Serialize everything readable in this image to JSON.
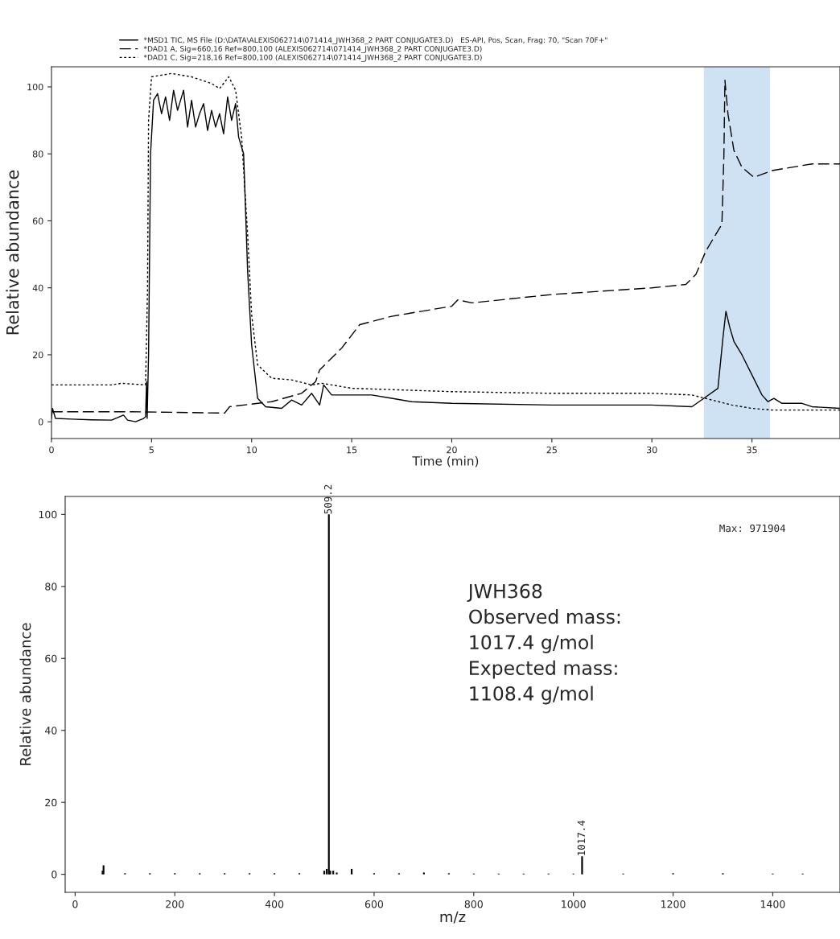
{
  "chart_data": [
    {
      "type": "line",
      "xlabel": "Time (min)",
      "ylabel": "Relative abundance",
      "xlim": [
        0,
        39.4
      ],
      "ylim": [
        -5,
        106
      ],
      "xticks": [
        0,
        5,
        10,
        15,
        20,
        25,
        30,
        35
      ],
      "yticks": [
        0,
        20,
        40,
        60,
        80,
        100
      ],
      "grid": false,
      "legend": "top left",
      "marker": "none",
      "series": [
        {
          "name": "*MSD1 TIC, MS File (D:\\DATA\\ALEXIS062714\\071414_JWH368_2 PART CONJUGATE3.D)   ES-API, Pos, Scan, Frag: 70, \"Scan 70F+\"",
          "color": "#000000",
          "line_style": "solid",
          "x": [
            0,
            0.05,
            0.2,
            1,
            2,
            3,
            3.6,
            3.8,
            4.2,
            4.6,
            4.7,
            4.75,
            4.78,
            4.85,
            4.95,
            5.1,
            5.3,
            5.5,
            5.7,
            5.9,
            6.1,
            6.3,
            6.6,
            6.8,
            7.0,
            7.2,
            7.4,
            7.6,
            7.8,
            8.0,
            8.2,
            8.4,
            8.6,
            8.8,
            9.0,
            9.2,
            9.35,
            9.6,
            9.8,
            10.0,
            10.3,
            10.7,
            11.5,
            12.0,
            12.5,
            13.0,
            13.4,
            13.6,
            14.0,
            15,
            16,
            17,
            18,
            20,
            25,
            30,
            32,
            32.6,
            33.3,
            33.55,
            33.7,
            33.9,
            34.1,
            34.5,
            35,
            35.5,
            35.8,
            36.1,
            36.5,
            37.5,
            38,
            39.4
          ],
          "values": [
            1,
            4,
            1,
            0.8,
            0.6,
            0.5,
            2,
            0.5,
            0,
            1,
            1.5,
            12,
            1,
            20,
            80,
            96,
            98,
            92,
            97,
            90,
            99,
            93,
            99,
            88,
            96,
            88,
            92,
            95,
            87,
            93,
            88,
            92,
            86,
            97,
            90,
            95,
            85,
            80,
            45,
            23,
            7,
            4.5,
            4,
            6.5,
            5,
            8.5,
            5,
            11,
            8,
            8,
            8,
            7,
            6,
            5.5,
            5,
            5,
            4.5,
            7,
            10,
            25,
            33,
            28,
            24,
            20,
            14,
            8,
            6,
            7,
            5.5,
            5.5,
            4.5,
            4
          ]
        },
        {
          "name": "*DAD1 A, Sig=660,16 Ref=800,100 (ALEXIS062714\\071414_JWH368_2 PART CONJUGATE3.D)",
          "color": "#000000",
          "line_style": "dashed",
          "x": [
            0,
            4,
            8.65,
            8.9,
            11,
            12.5,
            13.2,
            13.4,
            14.5,
            15.4,
            17,
            20,
            20.3,
            21,
            25,
            30,
            31.7,
            32.2,
            32.7,
            33.5,
            33.6,
            33.65,
            33.8,
            34.1,
            34.5,
            35.1,
            36.0,
            37,
            38,
            39.4
          ],
          "values": [
            3,
            3,
            2.6,
            4.5,
            6,
            8.5,
            12,
            15.5,
            22,
            29,
            31.5,
            34.5,
            36.4,
            35.5,
            38,
            40,
            41,
            44,
            51,
            59,
            80,
            102,
            92,
            81,
            76,
            73,
            75,
            76,
            77,
            77
          ]
        },
        {
          "name": "*DAD1 C, Sig=218,16 Ref=800,100 (ALEXIS062714\\071414_JWH368_2 PART CONJUGATE3.D)",
          "color": "#000000",
          "line_style": "dotted",
          "x": [
            0,
            3,
            3.5,
            4.7,
            4.8,
            4.85,
            5.0,
            6,
            7,
            8,
            8.4,
            8.86,
            9.2,
            9.5,
            9.8,
            10.0,
            10.3,
            11,
            12,
            13,
            13.5,
            15,
            20,
            25,
            30,
            32,
            33,
            34,
            35,
            36,
            39.4
          ],
          "values": [
            11,
            11,
            11.5,
            11,
            40,
            90,
            103,
            104,
            103,
            101,
            99.5,
            103,
            99,
            85,
            56,
            32,
            17,
            13,
            12.5,
            11,
            11.5,
            10,
            9,
            8.5,
            8.5,
            8,
            6.5,
            5,
            4,
            3.5,
            3.5
          ]
        }
      ],
      "bands": [
        {
          "axis": "x",
          "from": 32.6,
          "to": 35.9,
          "color": "#cfe2f3"
        }
      ]
    },
    {
      "type": "bar",
      "xlabel": "m/z",
      "ylabel": "Relative abundance",
      "xlim": [
        -20,
        1535
      ],
      "ylim": [
        -5,
        105
      ],
      "xticks": [
        0,
        200,
        400,
        600,
        800,
        1000,
        1200,
        1400
      ],
      "yticks": [
        0,
        20,
        40,
        60,
        80,
        100
      ],
      "grid": false,
      "x": [
        55,
        57,
        100,
        150,
        200,
        250,
        300,
        350,
        400,
        450,
        500,
        505,
        509.2,
        512,
        518,
        525,
        555,
        600,
        650,
        700,
        750,
        800,
        850,
        900,
        950,
        1000,
        1017.4,
        1100,
        1200,
        1300,
        1400,
        1460
      ],
      "values": [
        1,
        2.5,
        0.3,
        0.3,
        0.3,
        0.3,
        0.3,
        0.3,
        0.3,
        0.3,
        1,
        1.5,
        100,
        1,
        1,
        0.5,
        1.5,
        0.3,
        0.3,
        0.5,
        0.3,
        0.2,
        0.2,
        0.2,
        0.2,
        0.2,
        5,
        0.2,
        0.3,
        0.3,
        0.2,
        0.2
      ],
      "color": "#000000",
      "annotations": [
        {
          "text": "509.2",
          "x": 509.2,
          "y": 100
        },
        {
          "text": "1017.4",
          "x": 1017.4,
          "y": 5
        },
        "Max: 971904",
        "JWH368\nObserved mass:\n1017.4 g/mol\nExpected mass:\n1108.4 g/mol"
      ]
    }
  ]
}
